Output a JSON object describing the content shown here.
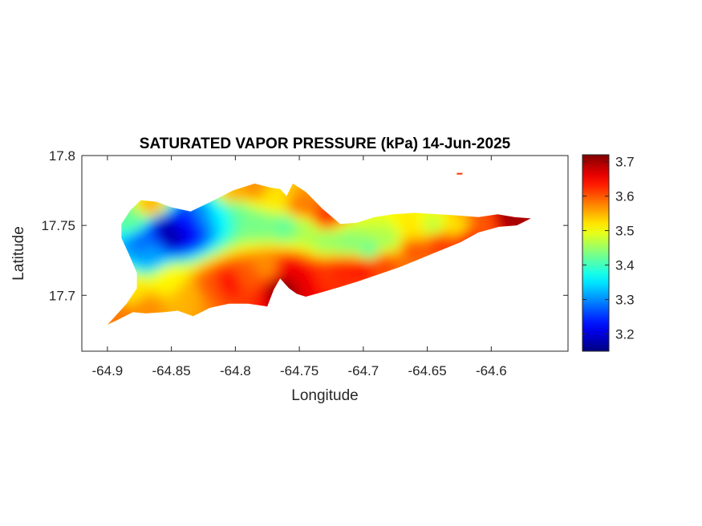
{
  "chart_data": {
    "type": "heatmap",
    "title": "SATURATED VAPOR PRESSURE (kPa) 14-Jun-2025",
    "xlabel": "Longitude",
    "ylabel": "Latitude",
    "xlim": [
      -64.92,
      -64.54
    ],
    "ylim": [
      17.66,
      17.8
    ],
    "x_ticks": [
      -64.9,
      -64.85,
      -64.8,
      -64.75,
      -64.7,
      -64.65,
      -64.6
    ],
    "x_tick_labels": [
      "-64.9",
      "-64.85",
      "-64.8",
      "-64.75",
      "-64.7",
      "-64.65",
      "-64.6"
    ],
    "y_ticks": [
      17.7,
      17.75,
      17.8
    ],
    "y_tick_labels": [
      "17.7",
      "17.75",
      "17.8"
    ],
    "colormap": "jet",
    "clim": [
      3.15,
      3.72
    ],
    "colorbar_ticks": [
      3.2,
      3.3,
      3.4,
      3.5,
      3.6,
      3.7
    ],
    "colorbar_tick_labels": [
      "3.2",
      "3.3",
      "3.4",
      "3.5",
      "3.6",
      "3.7"
    ],
    "grid": false,
    "island_outline_lonlat": [
      [
        -64.9,
        17.679
      ],
      [
        -64.895,
        17.684
      ],
      [
        -64.885,
        17.694
      ],
      [
        -64.877,
        17.705
      ],
      [
        -64.877,
        17.716
      ],
      [
        -64.883,
        17.729
      ],
      [
        -64.889,
        17.741
      ],
      [
        -64.889,
        17.751
      ],
      [
        -64.882,
        17.761
      ],
      [
        -64.874,
        17.768
      ],
      [
        -64.862,
        17.767
      ],
      [
        -64.85,
        17.763
      ],
      [
        -64.835,
        17.76
      ],
      [
        -64.819,
        17.767
      ],
      [
        -64.802,
        17.775
      ],
      [
        -64.785,
        17.78
      ],
      [
        -64.772,
        17.777
      ],
      [
        -64.765,
        17.776
      ],
      [
        -64.76,
        17.771
      ],
      [
        -64.755,
        17.78
      ],
      [
        -64.745,
        17.774
      ],
      [
        -64.732,
        17.762
      ],
      [
        -64.718,
        17.751
      ],
      [
        -64.705,
        17.752
      ],
      [
        -64.691,
        17.756
      ],
      [
        -64.677,
        17.758
      ],
      [
        -64.66,
        17.759
      ],
      [
        -64.641,
        17.758
      ],
      [
        -64.625,
        17.757
      ],
      [
        -64.61,
        17.756
      ],
      [
        -64.595,
        17.758
      ],
      [
        -64.582,
        17.756
      ],
      [
        -64.569,
        17.755
      ],
      [
        -64.58,
        17.75
      ],
      [
        -64.594,
        17.749
      ],
      [
        -64.61,
        17.745
      ],
      [
        -64.624,
        17.738
      ],
      [
        -64.64,
        17.732
      ],
      [
        -64.656,
        17.726
      ],
      [
        -64.672,
        17.72
      ],
      [
        -64.688,
        17.715
      ],
      [
        -64.704,
        17.71
      ],
      [
        -64.718,
        17.706
      ],
      [
        -64.733,
        17.702
      ],
      [
        -64.745,
        17.699
      ],
      [
        -64.752,
        17.701
      ],
      [
        -64.758,
        17.705
      ],
      [
        -64.765,
        17.712
      ],
      [
        -64.77,
        17.704
      ],
      [
        -64.775,
        17.692
      ],
      [
        -64.79,
        17.694
      ],
      [
        -64.805,
        17.694
      ],
      [
        -64.82,
        17.691
      ],
      [
        -64.833,
        17.685
      ],
      [
        -64.845,
        17.689
      ],
      [
        -64.855,
        17.688
      ],
      [
        -64.87,
        17.687
      ],
      [
        -64.88,
        17.688
      ],
      [
        -64.893,
        17.682
      ]
    ],
    "islet_lonlat": [
      -64.625,
      17.787
    ],
    "surface_samples_lon_lat_kpa": [
      [
        -64.85,
        17.741,
        3.17
      ],
      [
        -64.855,
        17.748,
        3.18
      ],
      [
        -64.84,
        17.745,
        3.21
      ],
      [
        -64.835,
        17.752,
        3.24
      ],
      [
        -64.87,
        17.738,
        3.28
      ],
      [
        -64.865,
        17.728,
        3.31
      ],
      [
        -64.825,
        17.755,
        3.3
      ],
      [
        -64.812,
        17.757,
        3.36
      ],
      [
        -64.88,
        17.752,
        3.42
      ],
      [
        -64.8,
        17.76,
        3.42
      ],
      [
        -64.782,
        17.75,
        3.43
      ],
      [
        -64.76,
        17.748,
        3.42
      ],
      [
        -64.744,
        17.746,
        3.46
      ],
      [
        -64.728,
        17.738,
        3.45
      ],
      [
        -64.712,
        17.736,
        3.44
      ],
      [
        -64.695,
        17.73,
        3.42
      ],
      [
        -64.68,
        17.738,
        3.46
      ],
      [
        -64.66,
        17.745,
        3.52
      ],
      [
        -64.645,
        17.747,
        3.47
      ],
      [
        -64.625,
        17.746,
        3.52
      ],
      [
        -64.605,
        17.75,
        3.6
      ],
      [
        -64.586,
        17.754,
        3.7
      ],
      [
        -64.8,
        17.77,
        3.55
      ],
      [
        -64.785,
        17.775,
        3.57
      ],
      [
        -64.77,
        17.768,
        3.52
      ],
      [
        -64.748,
        17.762,
        3.58
      ],
      [
        -64.73,
        17.754,
        3.62
      ],
      [
        -64.88,
        17.7,
        3.52
      ],
      [
        -64.87,
        17.69,
        3.57
      ],
      [
        -64.89,
        17.684,
        3.58
      ],
      [
        -64.85,
        17.71,
        3.51
      ],
      [
        -64.835,
        17.7,
        3.55
      ],
      [
        -64.82,
        17.705,
        3.6
      ],
      [
        -64.805,
        17.708,
        3.64
      ],
      [
        -64.79,
        17.712,
        3.6
      ],
      [
        -64.775,
        17.718,
        3.57
      ],
      [
        -64.762,
        17.704,
        3.72
      ],
      [
        -64.758,
        17.715,
        3.66
      ],
      [
        -64.745,
        17.708,
        3.66
      ],
      [
        -64.73,
        17.712,
        3.62
      ],
      [
        -64.715,
        17.716,
        3.63
      ],
      [
        -64.7,
        17.719,
        3.64
      ],
      [
        -64.685,
        17.722,
        3.61
      ],
      [
        -64.66,
        17.732,
        3.6
      ],
      [
        -64.64,
        17.737,
        3.62
      ],
      [
        -64.62,
        17.74,
        3.64
      ],
      [
        -64.865,
        17.762,
        3.55
      ]
    ]
  }
}
